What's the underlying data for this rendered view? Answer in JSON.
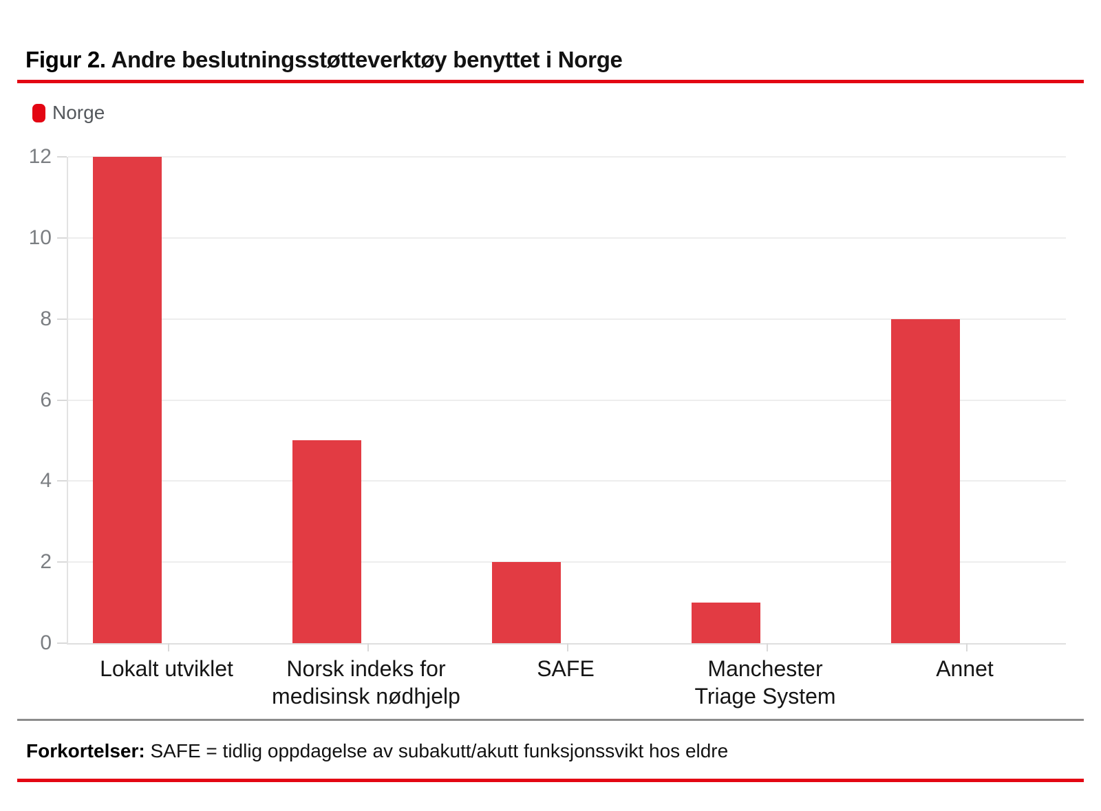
{
  "title": {
    "prefix": "Figur 2.",
    "rest": "Andre beslutningsstøtteverktøy benyttet i Norge"
  },
  "legend": {
    "label": "Norge"
  },
  "chart_data": {
    "type": "bar",
    "title": "Figur 2. Andre beslutningsstøtteverktøy benyttet i Norge",
    "categories": [
      "Lokalt utviklet",
      "Norsk indeks for\nmedisinsk nødhjelp",
      "SAFE",
      "Manchester\nTriage System",
      "Annet"
    ],
    "series": [
      {
        "name": "Norge",
        "values": [
          12,
          5,
          2,
          1,
          8
        ],
        "color": "#e23b43"
      }
    ],
    "xlabel": "",
    "ylabel": "",
    "ylim": [
      0,
      12
    ],
    "yticks": [
      0,
      2,
      4,
      6,
      8,
      10,
      12
    ],
    "grid": true,
    "legend_position": "top-left"
  },
  "footer": {
    "bold": "Forkortelser:",
    "rest": "SAFE = tidlig oppdagelse av subakutt/akutt funksjonssvikt hos eldre"
  },
  "colors": {
    "accent_red": "#e30613",
    "bar_red": "#e23b43",
    "divider_gray": "#8c8c8c",
    "grid_line": "#ededed",
    "axis_line": "#e3e3e3",
    "tick": "#d9d9d9",
    "axis_label_gray": "#7b7e82",
    "legend_text": "#54585c",
    "label_text": "#151515"
  }
}
